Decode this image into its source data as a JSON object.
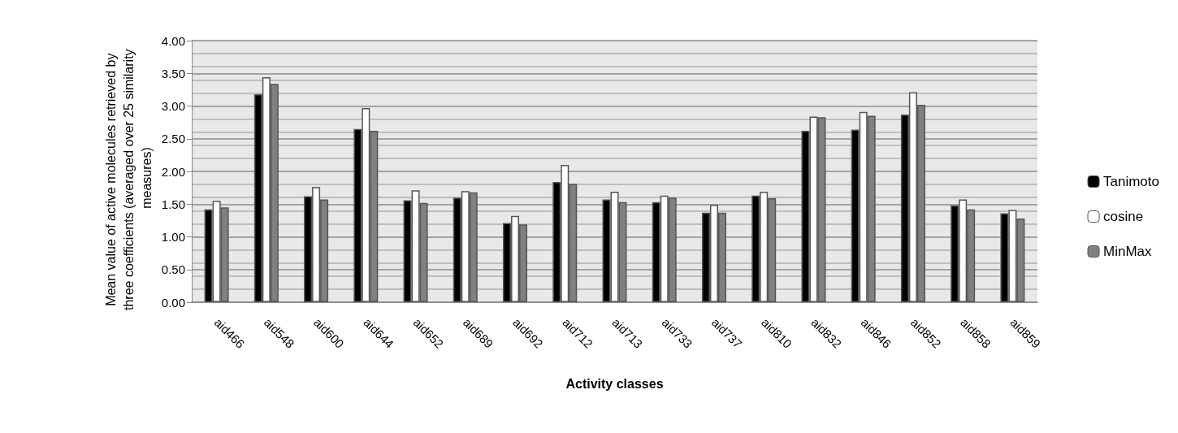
{
  "chart_data": {
    "type": "bar",
    "xlabel": "Activity classes",
    "ylabel": "Mean value of active molecules retrieved by three coefficients (averaged over 25 similarity measures)",
    "categories": [
      "aid466",
      "aid548",
      "aid600",
      "aid644",
      "aid652",
      "aid689",
      "aid692",
      "aid712",
      "aid713",
      "aid733",
      "aid737",
      "aid810",
      "aid832",
      "aid846",
      "aid852",
      "aid858",
      "aid859"
    ],
    "series": [
      {
        "name": "Tanimoto",
        "color": "#000000",
        "values": [
          1.42,
          3.18,
          1.62,
          2.65,
          1.56,
          1.6,
          1.21,
          1.84,
          1.57,
          1.53,
          1.37,
          1.63,
          2.62,
          2.64,
          2.87,
          1.48,
          1.36
        ]
      },
      {
        "name": "cosine",
        "color": "#ffffff",
        "values": [
          1.55,
          3.44,
          1.76,
          2.97,
          1.71,
          1.7,
          1.32,
          2.1,
          1.69,
          1.63,
          1.49,
          1.69,
          2.84,
          2.91,
          3.21,
          1.57,
          1.41
        ]
      },
      {
        "name": "MinMax",
        "color": "#808080",
        "values": [
          1.45,
          3.34,
          1.57,
          2.62,
          1.52,
          1.68,
          1.19,
          1.81,
          1.53,
          1.6,
          1.37,
          1.59,
          2.83,
          2.85,
          3.02,
          1.42,
          1.28
        ]
      }
    ],
    "ylim": [
      0,
      4
    ],
    "yticks": [
      {
        "value": 0,
        "label": "0.00"
      },
      {
        "value": 0.5,
        "label": "0.50"
      },
      {
        "value": 1,
        "label": "1.00"
      },
      {
        "value": 1.5,
        "label": "1.50"
      },
      {
        "value": 2,
        "label": "2.00"
      },
      {
        "value": 2.5,
        "label": "2.50"
      },
      {
        "value": 3,
        "label": "3.00"
      },
      {
        "value": 3.5,
        "label": "3.50"
      },
      {
        "value": 4,
        "label": "4.00"
      }
    ],
    "grid": true,
    "legend": "right"
  }
}
